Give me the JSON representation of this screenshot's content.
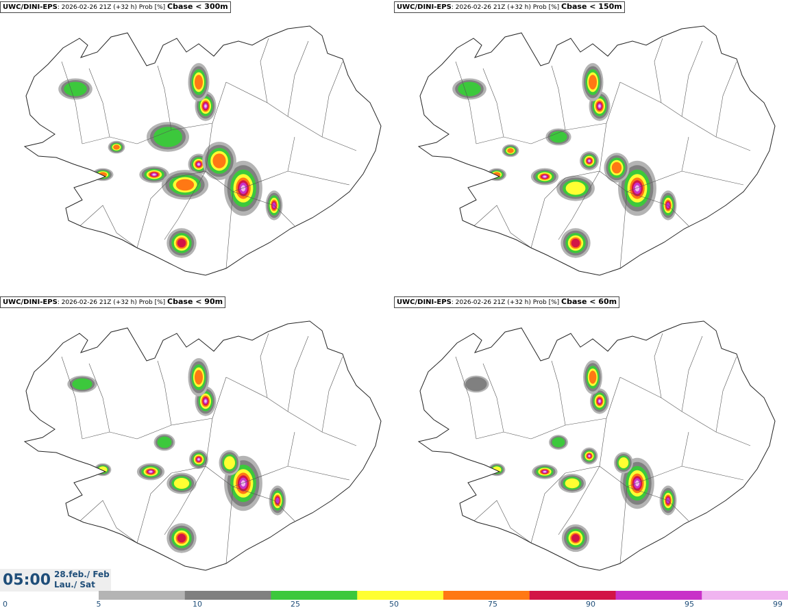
{
  "panels": [
    {
      "model": "UWC/DINI-EPS",
      "info": ": 2026-02-26 21Z (+32 h) Prob [%]",
      "threshold": "Cbase < 300m"
    },
    {
      "model": "UWC/DINI-EPS",
      "info": ": 2026-02-26 21Z (+32 h) Prob [%]",
      "threshold": "Cbase < 150m"
    },
    {
      "model": "UWC/DINI-EPS",
      "info": ": 2026-02-26 21Z (+32 h) Prob [%]",
      "threshold": "Cbase < 90m"
    },
    {
      "model": "UWC/DINI-EPS",
      "info": ": 2026-02-26 21Z (+32 h) Prob [%]",
      "threshold": "Cbase < 60m"
    }
  ],
  "time": {
    "clock": "05:00",
    "date_line1": "28.feb./ Feb",
    "date_line2": "Lau./ Sat"
  },
  "colorbar": {
    "ticks": [
      "0",
      "5",
      "10",
      "25",
      "50",
      "75",
      "90",
      "95",
      "99"
    ],
    "colors": [
      "#b4b4b4",
      "#808080",
      "#3cc83c",
      "#ffff32",
      "#ff7814",
      "#d21446",
      "#c832c8",
      "#f0b4f0"
    ]
  }
}
